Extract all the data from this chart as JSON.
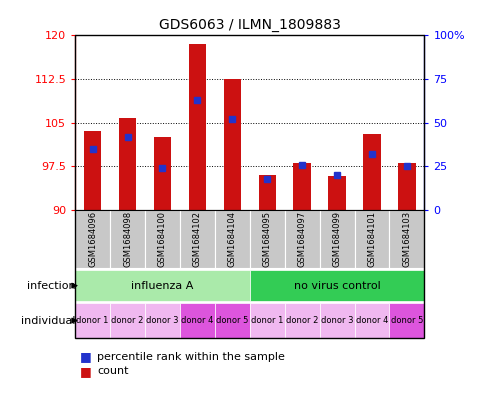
{
  "title": "GDS6063 / ILMN_1809883",
  "samples": [
    "GSM1684096",
    "GSM1684098",
    "GSM1684100",
    "GSM1684102",
    "GSM1684104",
    "GSM1684095",
    "GSM1684097",
    "GSM1684099",
    "GSM1684101",
    "GSM1684103"
  ],
  "count_values": [
    103.5,
    105.8,
    102.5,
    118.5,
    112.5,
    96.0,
    98.0,
    95.8,
    103.0,
    98.0
  ],
  "percentile_values": [
    35,
    42,
    24,
    63,
    52,
    18,
    26,
    20,
    32,
    25
  ],
  "ylim_left": [
    90,
    120
  ],
  "ylim_right": [
    0,
    100
  ],
  "yticks_left": [
    90,
    97.5,
    105,
    112.5,
    120
  ],
  "yticks_right": [
    0,
    25,
    50,
    75,
    100
  ],
  "bar_color": "#cc1111",
  "marker_color": "#2233cc",
  "infection_groups": [
    {
      "label": "influenza A",
      "start": 0,
      "end": 5,
      "color": "#aaeaaa"
    },
    {
      "label": "no virus control",
      "start": 5,
      "end": 10,
      "color": "#33cc55"
    }
  ],
  "individual_labels": [
    "donor 1",
    "donor 2",
    "donor 3",
    "donor 4",
    "donor 5",
    "donor 1",
    "donor 2",
    "donor 3",
    "donor 4",
    "donor 5"
  ],
  "individual_colors": [
    "#f0b8f0",
    "#f0b8f0",
    "#f0b8f0",
    "#dd55dd",
    "#dd55dd",
    "#f0b8f0",
    "#f0b8f0",
    "#f0b8f0",
    "#f0b8f0",
    "#dd55dd"
  ],
  "sample_bg_color": "#c8c8c8",
  "bar_width": 0.5
}
